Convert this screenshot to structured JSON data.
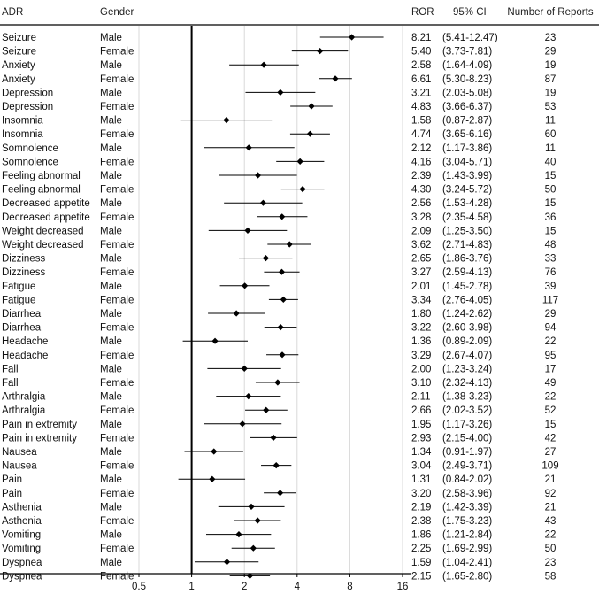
{
  "headers": {
    "adr": "ADR",
    "gender": "Gender",
    "ror": "ROR",
    "ci": "95% CI",
    "reports": "Number of Reports"
  },
  "chart_data": {
    "type": "forest",
    "x_scale": "log2",
    "xlim": [
      0.5,
      16
    ],
    "x_ticks": [
      0.5,
      1,
      2,
      4,
      8,
      16
    ],
    "x_tick_labels": [
      "0.5",
      "1",
      "2",
      "4",
      "8",
      "16"
    ],
    "reference_line": 1,
    "grid": "vertical",
    "marker_color": "#000000",
    "ci_line_color": "#000000",
    "rows": [
      {
        "adr": "Seizure",
        "gender": "Male",
        "ror": 8.21,
        "lo": 5.41,
        "hi": 12.47,
        "ci_text": "(5.41-12.47)",
        "n": 23
      },
      {
        "adr": "Seizure",
        "gender": "Female",
        "ror": 5.4,
        "lo": 3.73,
        "hi": 7.81,
        "ci_text": "(3.73-7.81)",
        "n": 29
      },
      {
        "adr": "Anxiety",
        "gender": "Male",
        "ror": 2.58,
        "lo": 1.64,
        "hi": 4.09,
        "ci_text": "(1.64-4.09)",
        "n": 19
      },
      {
        "adr": "Anxiety",
        "gender": "Female",
        "ror": 6.61,
        "lo": 5.3,
        "hi": 8.23,
        "ci_text": "(5.30-8.23)",
        "n": 87
      },
      {
        "adr": "Depression",
        "gender": "Male",
        "ror": 3.21,
        "lo": 2.03,
        "hi": 5.08,
        "ci_text": "(2.03-5.08)",
        "n": 19
      },
      {
        "adr": "Depression",
        "gender": "Female",
        "ror": 4.83,
        "lo": 3.66,
        "hi": 6.37,
        "ci_text": "(3.66-6.37)",
        "n": 53
      },
      {
        "adr": "Insomnia",
        "gender": "Male",
        "ror": 1.58,
        "lo": 0.87,
        "hi": 2.87,
        "ci_text": "(0.87-2.87)",
        "n": 11
      },
      {
        "adr": "Insomnia",
        "gender": "Female",
        "ror": 4.74,
        "lo": 3.65,
        "hi": 6.16,
        "ci_text": "(3.65-6.16)",
        "n": 60
      },
      {
        "adr": "Somnolence",
        "gender": "Male",
        "ror": 2.12,
        "lo": 1.17,
        "hi": 3.86,
        "ci_text": "(1.17-3.86)",
        "n": 11
      },
      {
        "adr": "Somnolence",
        "gender": "Female",
        "ror": 4.16,
        "lo": 3.04,
        "hi": 5.71,
        "ci_text": "(3.04-5.71)",
        "n": 40
      },
      {
        "adr": "Feeling abnormal",
        "gender": "Male",
        "ror": 2.39,
        "lo": 1.43,
        "hi": 3.99,
        "ci_text": "(1.43-3.99)",
        "n": 15
      },
      {
        "adr": "Feeling abnormal",
        "gender": "Female",
        "ror": 4.3,
        "lo": 3.24,
        "hi": 5.72,
        "ci_text": "(3.24-5.72)",
        "n": 50
      },
      {
        "adr": "Decreased appetite",
        "gender": "Male",
        "ror": 2.56,
        "lo": 1.53,
        "hi": 4.28,
        "ci_text": "(1.53-4.28)",
        "n": 15
      },
      {
        "adr": "Decreased appetite",
        "gender": "Female",
        "ror": 3.28,
        "lo": 2.35,
        "hi": 4.58,
        "ci_text": "(2.35-4.58)",
        "n": 36
      },
      {
        "adr": "Weight decreased",
        "gender": "Male",
        "ror": 2.09,
        "lo": 1.25,
        "hi": 3.5,
        "ci_text": "(1.25-3.50)",
        "n": 15
      },
      {
        "adr": "Weight decreased",
        "gender": "Female",
        "ror": 3.62,
        "lo": 2.71,
        "hi": 4.83,
        "ci_text": "(2.71-4.83)",
        "n": 48
      },
      {
        "adr": "Dizziness",
        "gender": "Male",
        "ror": 2.65,
        "lo": 1.86,
        "hi": 3.76,
        "ci_text": "(1.86-3.76)",
        "n": 33
      },
      {
        "adr": "Dizziness",
        "gender": "Female",
        "ror": 3.27,
        "lo": 2.59,
        "hi": 4.13,
        "ci_text": "(2.59-4.13)",
        "n": 76
      },
      {
        "adr": "Fatigue",
        "gender": "Male",
        "ror": 2.01,
        "lo": 1.45,
        "hi": 2.78,
        "ci_text": "(1.45-2.78)",
        "n": 39
      },
      {
        "adr": "Fatigue",
        "gender": "Female",
        "ror": 3.34,
        "lo": 2.76,
        "hi": 4.05,
        "ci_text": "(2.76-4.05)",
        "n": 117
      },
      {
        "adr": "Diarrhea",
        "gender": "Male",
        "ror": 1.8,
        "lo": 1.24,
        "hi": 2.62,
        "ci_text": "(1.24-2.62)",
        "n": 29
      },
      {
        "adr": "Diarrhea",
        "gender": "Female",
        "ror": 3.22,
        "lo": 2.6,
        "hi": 3.98,
        "ci_text": "(2.60-3.98)",
        "n": 94
      },
      {
        "adr": "Headache",
        "gender": "Male",
        "ror": 1.36,
        "lo": 0.89,
        "hi": 2.09,
        "ci_text": "(0.89-2.09)",
        "n": 22
      },
      {
        "adr": "Headache",
        "gender": "Female",
        "ror": 3.29,
        "lo": 2.67,
        "hi": 4.07,
        "ci_text": "(2.67-4.07)",
        "n": 95
      },
      {
        "adr": "Fall",
        "gender": "Male",
        "ror": 2.0,
        "lo": 1.23,
        "hi": 3.24,
        "ci_text": "(1.23-3.24)",
        "n": 17
      },
      {
        "adr": "Fall",
        "gender": "Female",
        "ror": 3.1,
        "lo": 2.32,
        "hi": 4.13,
        "ci_text": "(2.32-4.13)",
        "n": 49
      },
      {
        "adr": "Arthralgia",
        "gender": "Male",
        "ror": 2.11,
        "lo": 1.38,
        "hi": 3.23,
        "ci_text": "(1.38-3.23)",
        "n": 22
      },
      {
        "adr": "Arthralgia",
        "gender": "Female",
        "ror": 2.66,
        "lo": 2.02,
        "hi": 3.52,
        "ci_text": "(2.02-3.52)",
        "n": 52
      },
      {
        "adr": "Pain in extremity",
        "gender": "Male",
        "ror": 1.95,
        "lo": 1.17,
        "hi": 3.26,
        "ci_text": "(1.17-3.26)",
        "n": 15
      },
      {
        "adr": "Pain in extremity",
        "gender": "Female",
        "ror": 2.93,
        "lo": 2.15,
        "hi": 4.0,
        "ci_text": "(2.15-4.00)",
        "n": 42
      },
      {
        "adr": "Nausea",
        "gender": "Male",
        "ror": 1.34,
        "lo": 0.91,
        "hi": 1.97,
        "ci_text": "(0.91-1.97)",
        "n": 27
      },
      {
        "adr": "Nausea",
        "gender": "Female",
        "ror": 3.04,
        "lo": 2.49,
        "hi": 3.71,
        "ci_text": "(2.49-3.71)",
        "n": 109
      },
      {
        "adr": "Pain",
        "gender": "Male",
        "ror": 1.31,
        "lo": 0.84,
        "hi": 2.02,
        "ci_text": "(0.84-2.02)",
        "n": 21
      },
      {
        "adr": "Pain",
        "gender": "Female",
        "ror": 3.2,
        "lo": 2.58,
        "hi": 3.96,
        "ci_text": "(2.58-3.96)",
        "n": 92
      },
      {
        "adr": "Asthenia",
        "gender": "Male",
        "ror": 2.19,
        "lo": 1.42,
        "hi": 3.39,
        "ci_text": "(1.42-3.39)",
        "n": 21
      },
      {
        "adr": "Asthenia",
        "gender": "Female",
        "ror": 2.38,
        "lo": 1.75,
        "hi": 3.23,
        "ci_text": "(1.75-3.23)",
        "n": 43
      },
      {
        "adr": "Vomiting",
        "gender": "Male",
        "ror": 1.86,
        "lo": 1.21,
        "hi": 2.84,
        "ci_text": "(1.21-2.84)",
        "n": 22
      },
      {
        "adr": "Vomiting",
        "gender": "Female",
        "ror": 2.25,
        "lo": 1.69,
        "hi": 2.99,
        "ci_text": "(1.69-2.99)",
        "n": 50
      },
      {
        "adr": "Dyspnea",
        "gender": "Male",
        "ror": 1.59,
        "lo": 1.04,
        "hi": 2.41,
        "ci_text": "(1.04-2.41)",
        "n": 23
      },
      {
        "adr": "Dyspnea",
        "gender": "Female",
        "ror": 2.15,
        "lo": 1.65,
        "hi": 2.8,
        "ci_text": "(1.65-2.80)",
        "n": 58
      }
    ]
  }
}
